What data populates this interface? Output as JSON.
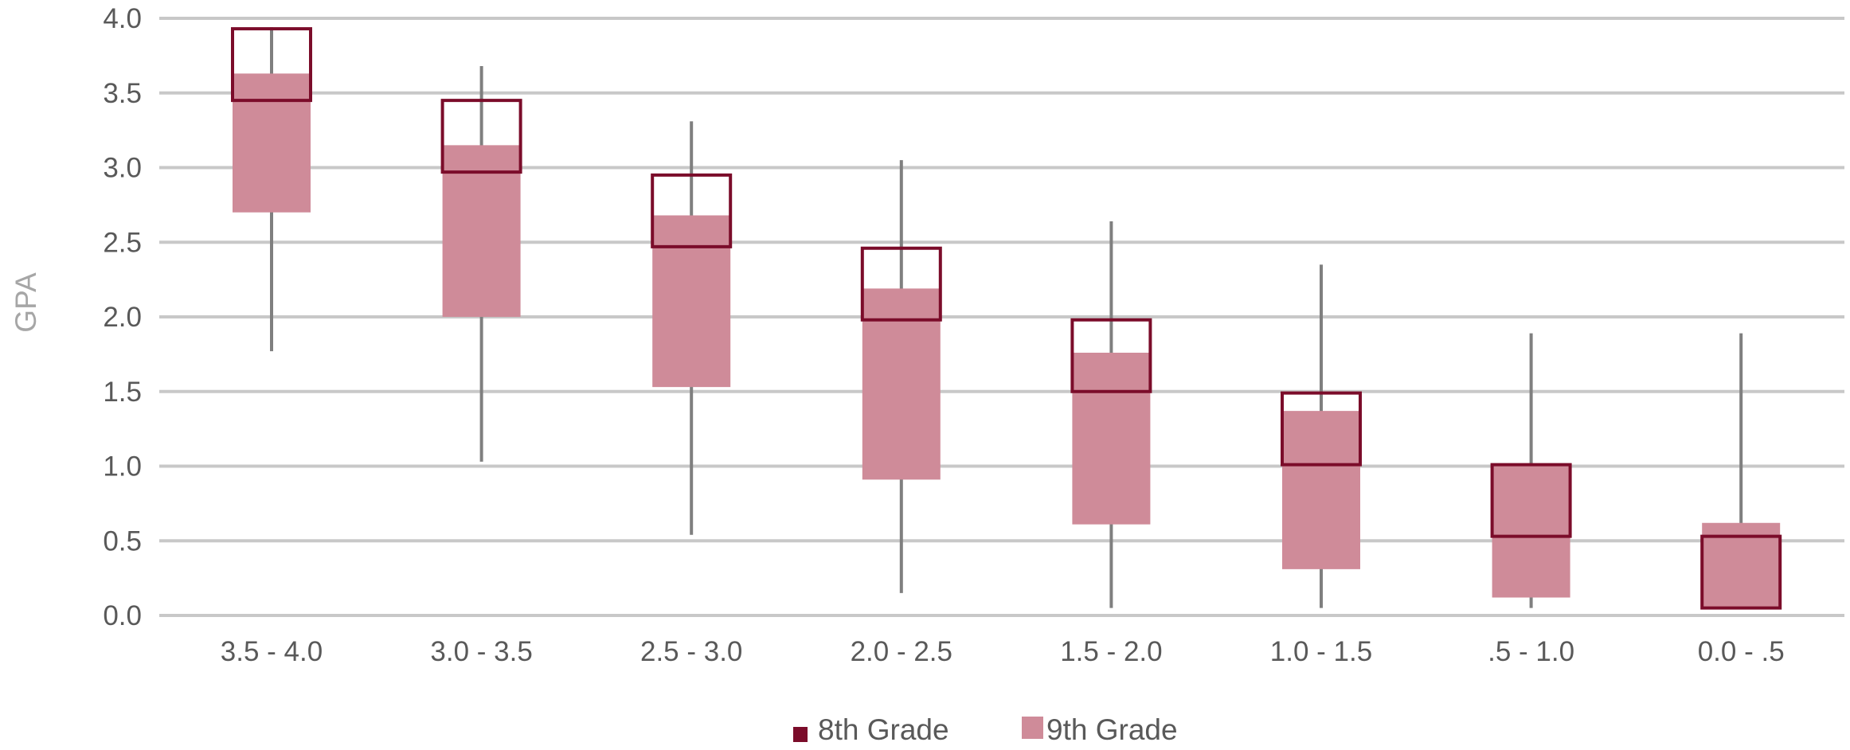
{
  "chart_data": {
    "type": "box",
    "title": "",
    "xlabel": "",
    "ylabel": "GPA",
    "ylim": [
      0,
      4
    ],
    "yticks": [
      "0.0",
      "0.5",
      "1.0",
      "1.5",
      "2.0",
      "2.5",
      "3.0",
      "3.5",
      "4.0"
    ],
    "grid": true,
    "legend_position": "bottom",
    "categories": [
      "3.5 - 4.0",
      "3.0 - 3.5",
      "2.5 - 3.0",
      "2.0 - 2.5",
      "1.5 - 2.0",
      "1.0 - 1.5",
      ".5 - 1.0",
      "0.0 - .5"
    ],
    "whiskers": [
      {
        "low": 1.77,
        "high": 3.94
      },
      {
        "low": 1.03,
        "high": 3.68
      },
      {
        "low": 0.54,
        "high": 3.31
      },
      {
        "low": 0.15,
        "high": 3.05
      },
      {
        "low": 0.05,
        "high": 2.64
      },
      {
        "low": 0.05,
        "high": 2.35
      },
      {
        "low": 0.05,
        "high": 1.89
      },
      {
        "low": 0.05,
        "high": 1.89
      }
    ],
    "series": [
      {
        "name": "8th Grade",
        "color": "#7b0c2a",
        "style": "outline",
        "boxes": [
          {
            "low": 3.45,
            "high": 3.93
          },
          {
            "low": 2.97,
            "high": 3.45
          },
          {
            "low": 2.47,
            "high": 2.95
          },
          {
            "low": 1.98,
            "high": 2.46
          },
          {
            "low": 1.5,
            "high": 1.98
          },
          {
            "low": 1.01,
            "high": 1.49
          },
          {
            "low": 0.53,
            "high": 1.01
          },
          {
            "low": 0.05,
            "high": 0.53
          }
        ]
      },
      {
        "name": "9th Grade",
        "color": "#cf8b99",
        "style": "filled",
        "boxes": [
          {
            "low": 2.7,
            "high": 3.63
          },
          {
            "low": 2.0,
            "high": 3.15
          },
          {
            "low": 1.53,
            "high": 2.68
          },
          {
            "low": 0.91,
            "high": 2.19
          },
          {
            "low": 0.61,
            "high": 1.76
          },
          {
            "low": 0.31,
            "high": 1.37
          },
          {
            "low": 0.12,
            "high": 1.01
          },
          {
            "low": 0.05,
            "high": 0.62
          }
        ]
      }
    ]
  }
}
